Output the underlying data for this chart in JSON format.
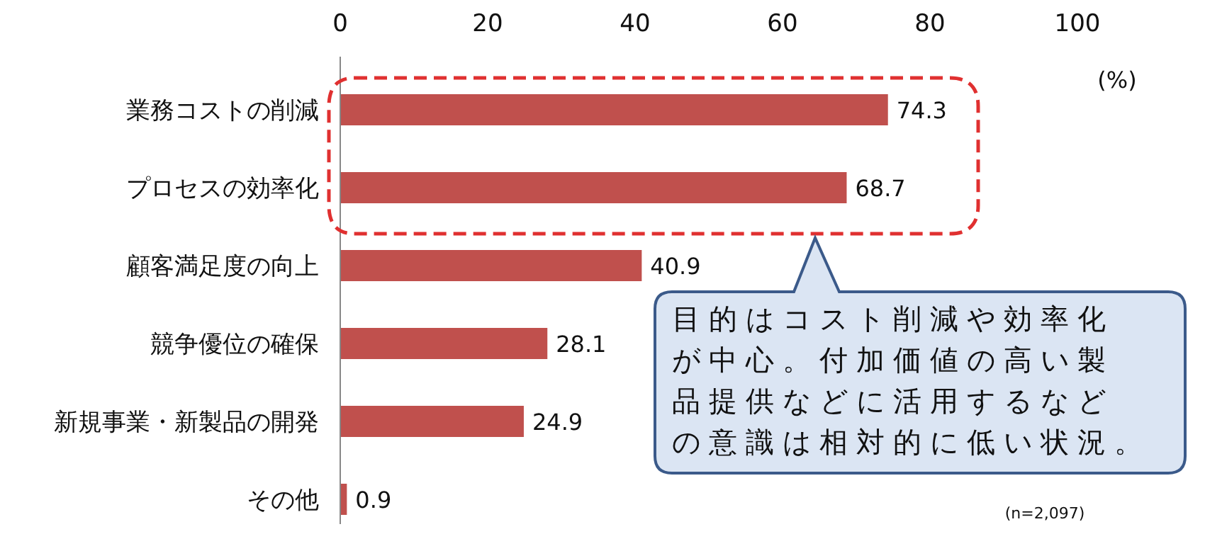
{
  "chart_data": {
    "type": "bar",
    "orientation": "horizontal",
    "categories": [
      "業務コストの削減",
      "プロセスの効率化",
      "顧客満足度の向上",
      "競争優位の確保",
      "新規事業・新製品の開発",
      "その他"
    ],
    "values": [
      74.3,
      68.7,
      40.9,
      28.1,
      24.9,
      0.9
    ],
    "color": "#c0504d",
    "xlim": [
      0,
      100
    ],
    "xticks": [
      0,
      20,
      40,
      60,
      80,
      100
    ],
    "data_labels": true,
    "annotations": [
      "(%)",
      "目的はコスト削減や効率化が中心。付加価値の高い製品提供などに活用するなどの意識は相対的に低い状況。",
      "(n=2,097)"
    ]
  }
}
